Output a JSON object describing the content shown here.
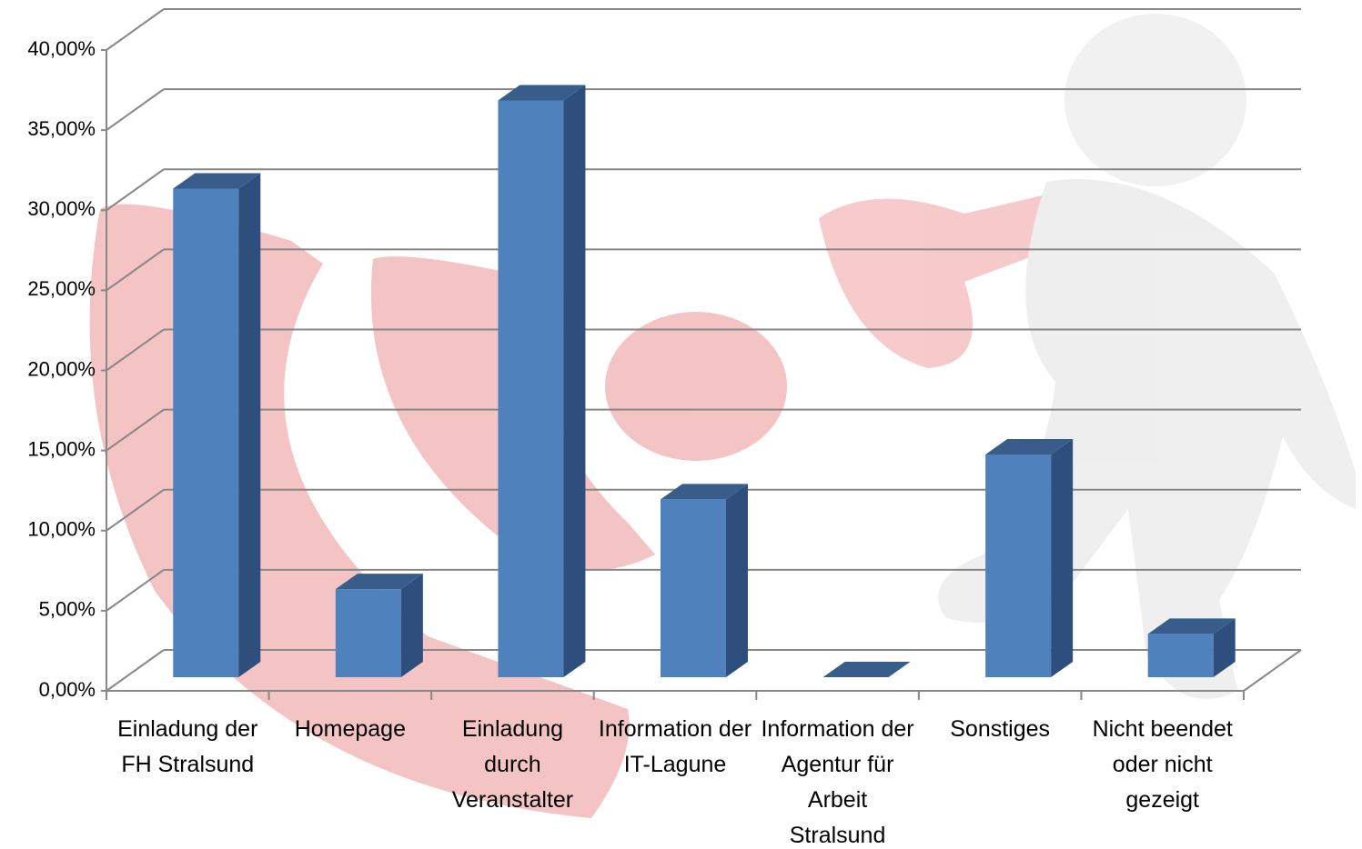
{
  "chart_data": {
    "type": "bar3d",
    "categories": [
      "Einladung der FH Stralsund",
      "Homepage",
      "Einladung durch Veranstalter",
      "Information der IT-Lagune",
      "Information der Agentur für Arbeit Stralsund",
      "Sonstiges",
      "Nicht beendet oder nicht gezeigt"
    ],
    "values": [
      30.5,
      5.5,
      36,
      11.1,
      0,
      13.9,
      2.7
    ],
    "color": "#4f81bd",
    "ylim": [
      0,
      40
    ],
    "yticks": [
      {
        "value": 0,
        "label": "0,00%"
      },
      {
        "value": 5,
        "label": "5,00%"
      },
      {
        "value": 10,
        "label": "10,00%"
      },
      {
        "value": 15,
        "label": "15,00%"
      },
      {
        "value": 20,
        "label": "20,00%"
      },
      {
        "value": 25,
        "label": "25,00%"
      },
      {
        "value": 30,
        "label": "30,00%"
      },
      {
        "value": 35,
        "label": "35,00%"
      },
      {
        "value": 40,
        "label": "40,00%"
      }
    ],
    "grid": true
  }
}
